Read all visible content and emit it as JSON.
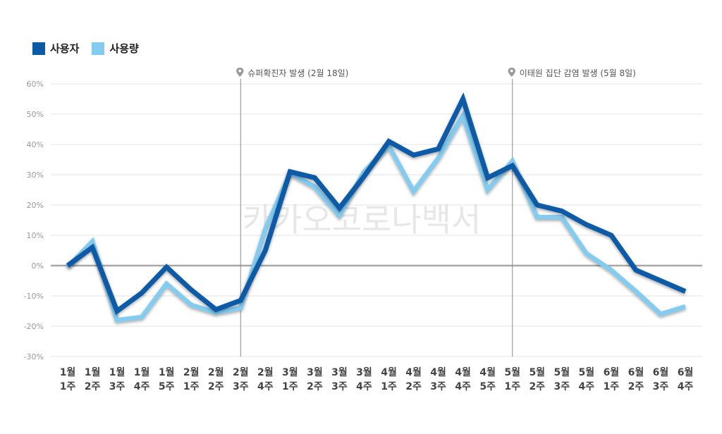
{
  "colors": {
    "series_dark": "#0a5aa6",
    "series_light": "#83cbef",
    "grid": "#e3e3e3",
    "zero_line": "#a8a8a8",
    "annotation_line": "#8c8c8c",
    "tick_text": "#999999",
    "category_text": "#444444",
    "watermark": "#d4d4d4"
  },
  "watermark": "카카오코로나백서",
  "chart_data": {
    "type": "line",
    "categories": [
      [
        "1월",
        "1주"
      ],
      [
        "1월",
        "2주"
      ],
      [
        "1월",
        "3주"
      ],
      [
        "1월",
        "4주"
      ],
      [
        "1월",
        "5주"
      ],
      [
        "2월",
        "1주"
      ],
      [
        "2월",
        "2주"
      ],
      [
        "2월",
        "3주"
      ],
      [
        "2월",
        "4주"
      ],
      [
        "3월",
        "1주"
      ],
      [
        "3월",
        "2주"
      ],
      [
        "3월",
        "3주"
      ],
      [
        "3월",
        "4주"
      ],
      [
        "4월",
        "1주"
      ],
      [
        "4월",
        "2주"
      ],
      [
        "4월",
        "3주"
      ],
      [
        "4월",
        "4주"
      ],
      [
        "4월",
        "5주"
      ],
      [
        "5월",
        "1주"
      ],
      [
        "5월",
        "2주"
      ],
      [
        "5월",
        "3주"
      ],
      [
        "5월",
        "4주"
      ],
      [
        "6월",
        "1주"
      ],
      [
        "6월",
        "2주"
      ],
      [
        "6월",
        "3주"
      ],
      [
        "6월",
        "4주"
      ]
    ],
    "series": [
      {
        "name": "사용자",
        "color": "#0a5aa6",
        "values": [
          0,
          6,
          -15,
          -9,
          -0.5,
          -8,
          -14.5,
          -11.5,
          5,
          31,
          29,
          19,
          29.5,
          41,
          36.5,
          38.5,
          55,
          29,
          33,
          20,
          18,
          13.5,
          10,
          -1.5,
          -5,
          -8.5
        ]
      },
      {
        "name": "사용량",
        "color": "#83cbef",
        "values": [
          -0.5,
          8,
          -18,
          -17,
          -6,
          -13,
          -15.5,
          -14,
          12,
          30.5,
          26,
          16.5,
          31,
          39.5,
          24.5,
          35.5,
          49.5,
          25,
          34.5,
          16,
          16,
          4,
          -1.5,
          -8.5,
          -16,
          -13.5
        ]
      }
    ],
    "y_ticks": [
      "60%",
      "50%",
      "40%",
      "30%",
      "20%",
      "10%",
      "0%",
      "-10%",
      "-20%",
      "-30%"
    ],
    "ylim": [
      -30,
      60
    ],
    "grid": true,
    "legend_position": "top-left",
    "annotations": [
      {
        "category_index": 7,
        "text": "슈퍼확진자 발생 (2월 18일)"
      },
      {
        "category_index": 18,
        "text": "이태원 집단 감염 발생 (5월 8일)"
      }
    ]
  }
}
